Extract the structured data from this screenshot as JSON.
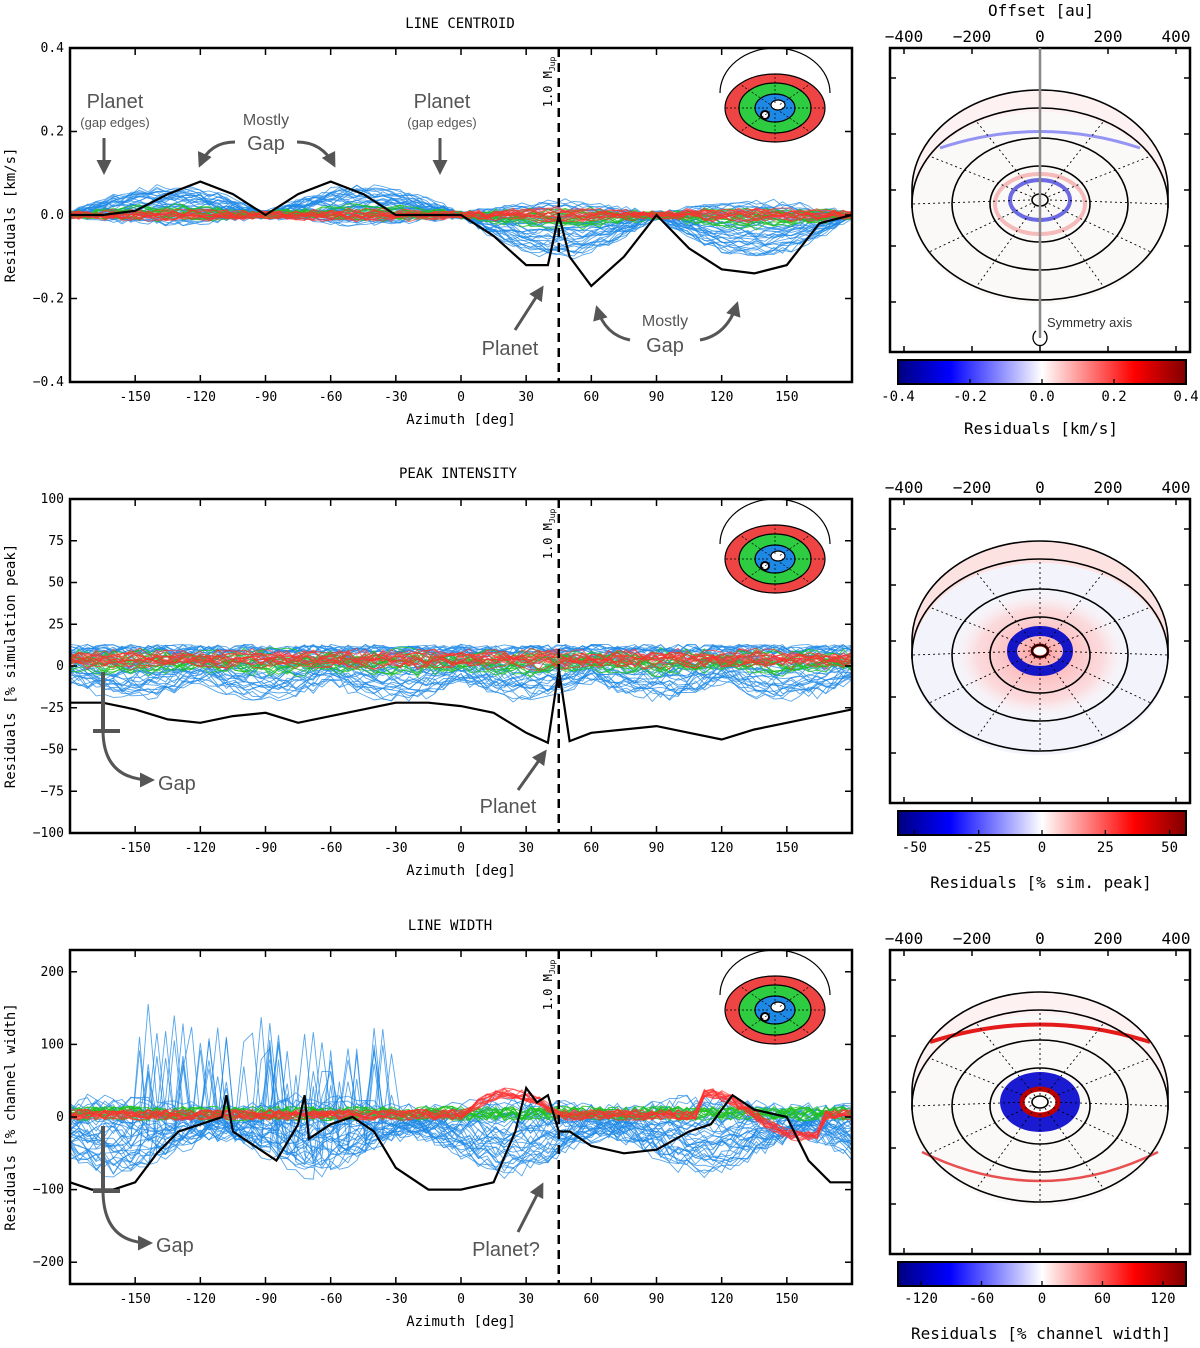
{
  "panels": [
    {
      "id": "centroid",
      "chart_data": {
        "type": "line",
        "title": "LINE CENTROID",
        "xlabel": "Azimuth [deg]",
        "ylabel": "Residuals [km/s]",
        "xlim": [
          -180,
          180
        ],
        "ylim": [
          -0.4,
          0.4
        ],
        "xticks": [
          "-150",
          "-120",
          "-90",
          "-60",
          "-30",
          "0",
          "30",
          "60",
          "90",
          "120",
          "150"
        ],
        "yticks": [
          "0.4",
          "0.2",
          "0.0",
          "−0.2",
          "−0.4"
        ],
        "planet_azimuth": 45,
        "planet_label": "1.0 M",
        "planet_label_sub": "Jup",
        "highlight_series": {
          "name": "gap radius",
          "x": [
            -180,
            -165,
            -150,
            -135,
            -120,
            -105,
            -90,
            -75,
            -60,
            -45,
            -30,
            -15,
            0,
            15,
            30,
            40,
            45,
            50,
            60,
            75,
            90,
            105,
            120,
            135,
            150,
            165,
            180
          ],
          "y": [
            0.0,
            0.0,
            0.01,
            0.05,
            0.08,
            0.05,
            0.0,
            0.05,
            0.08,
            0.05,
            0.0,
            0.0,
            0.0,
            -0.05,
            -0.12,
            -0.12,
            0.0,
            -0.1,
            -0.17,
            -0.1,
            0.0,
            -0.08,
            -0.13,
            -0.14,
            -0.12,
            -0.02,
            0.0
          ]
        },
        "annotations": [
          {
            "text": "Planet",
            "sub": "(gap edges)"
          },
          {
            "text": "Mostly",
            "sub": "Gap"
          },
          {
            "text": "Planet",
            "sub": "(gap edges)"
          },
          {
            "text": "Planet"
          },
          {
            "text": "Mostly",
            "sub": "Gap"
          }
        ]
      },
      "map": {
        "top_axis_label": "Offset [au]",
        "top_ticks": [
          "−400",
          "−200",
          "0",
          "200",
          "400"
        ],
        "colorbar_ticks": [
          "-0.4",
          "-0.2",
          "0.0",
          "0.2",
          "0.4"
        ],
        "colorbar_label": "Residuals [km/s]",
        "symmetry_label": "Symmetry axis"
      }
    },
    {
      "id": "peak",
      "chart_data": {
        "type": "line",
        "title": "PEAK INTENSITY",
        "xlabel": "Azimuth [deg]",
        "ylabel": "Residuals [% simulation peak]",
        "xlim": [
          -180,
          180
        ],
        "ylim": [
          -100,
          100
        ],
        "xticks": [
          "-150",
          "-120",
          "-90",
          "-60",
          "-30",
          "0",
          "30",
          "60",
          "90",
          "120",
          "150"
        ],
        "yticks": [
          "100",
          "75",
          "50",
          "25",
          "0",
          "−25",
          "−50",
          "−75",
          "−100"
        ],
        "planet_azimuth": 45,
        "planet_label": "1.0 M",
        "planet_label_sub": "Jup",
        "highlight_series": {
          "name": "gap radius",
          "x": [
            -180,
            -165,
            -150,
            -135,
            -120,
            -105,
            -90,
            -75,
            -60,
            -45,
            -30,
            -15,
            0,
            15,
            30,
            40,
            45,
            50,
            60,
            75,
            90,
            105,
            120,
            135,
            150,
            165,
            180
          ],
          "y": [
            -22,
            -22,
            -26,
            -32,
            -34,
            -30,
            -28,
            -34,
            -30,
            -26,
            -22,
            -22,
            -24,
            -28,
            -40,
            -46,
            -2,
            -45,
            -40,
            -38,
            -36,
            -40,
            -44,
            -38,
            -34,
            -30,
            -26
          ]
        },
        "annotations": [
          {
            "text": "Gap"
          },
          {
            "text": "Planet"
          }
        ]
      },
      "map": {
        "top_ticks": [
          "−400",
          "−200",
          "0",
          "200",
          "400"
        ],
        "colorbar_ticks": [
          "-50",
          "-25",
          "0",
          "25",
          "50"
        ],
        "colorbar_label": "Residuals [% sim. peak]"
      }
    },
    {
      "id": "width",
      "chart_data": {
        "type": "line",
        "title": "LINE WIDTH",
        "xlabel": "Azimuth [deg]",
        "ylabel": "Residuals [% channel width]",
        "xlim": [
          -180,
          180
        ],
        "ylim": [
          -230,
          230
        ],
        "xticks": [
          "-150",
          "-120",
          "-90",
          "-60",
          "-30",
          "0",
          "30",
          "60",
          "90",
          "120",
          "150"
        ],
        "yticks": [
          "200",
          "100",
          "0",
          "−100",
          "−200"
        ],
        "planet_azimuth": 45,
        "planet_label": "1.0 M",
        "planet_label_sub": "Jup",
        "highlight_series": {
          "name": "gap radius",
          "x": [
            -180,
            -170,
            -160,
            -150,
            -140,
            -130,
            -120,
            -110,
            -108,
            -105,
            -95,
            -85,
            -75,
            -72,
            -70,
            -60,
            -50,
            -40,
            -30,
            -15,
            0,
            15,
            25,
            30,
            35,
            40,
            45,
            50,
            60,
            75,
            90,
            105,
            115,
            125,
            135,
            150,
            160,
            170,
            180
          ],
          "y": [
            -90,
            -100,
            -100,
            -90,
            -50,
            -20,
            -10,
            0,
            30,
            -20,
            -40,
            -60,
            -10,
            30,
            -30,
            -10,
            0,
            -20,
            -70,
            -100,
            -100,
            -90,
            -20,
            40,
            20,
            30,
            -20,
            -20,
            -40,
            -50,
            -45,
            -20,
            -10,
            30,
            10,
            0,
            -60,
            -90,
            -90
          ]
        },
        "annotations": [
          {
            "text": "Gap"
          },
          {
            "text": "Planet?"
          }
        ]
      },
      "map": {
        "top_ticks": [
          "−400",
          "−200",
          "0",
          "200",
          "400"
        ],
        "colorbar_ticks": [
          "-120",
          "-60",
          "0",
          "60",
          "120"
        ],
        "colorbar_label": "Residuals [% channel width]"
      }
    }
  ]
}
